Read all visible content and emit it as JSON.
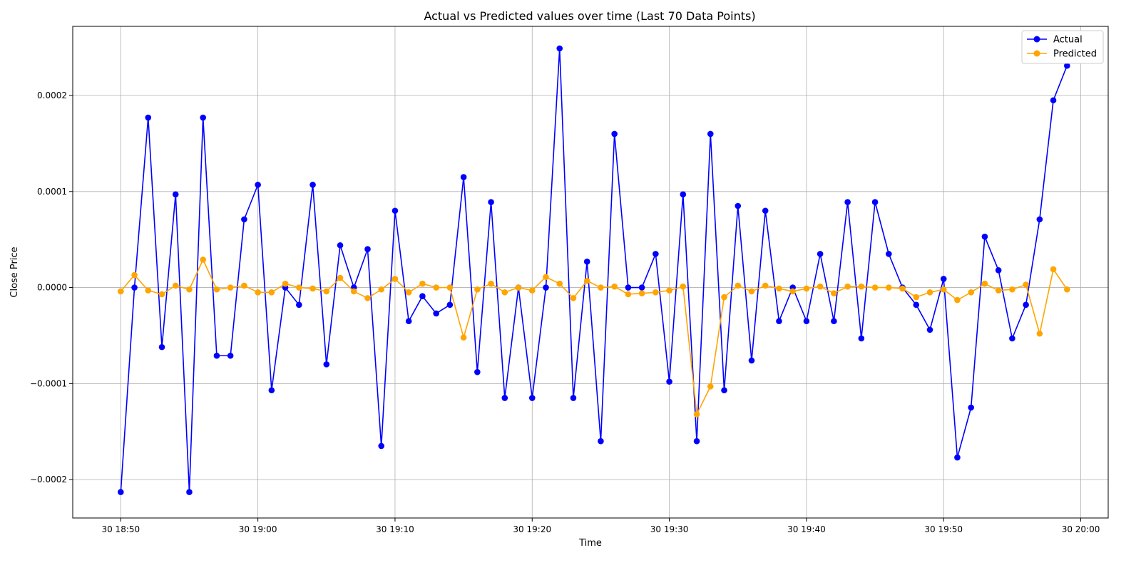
{
  "chart_data": {
    "type": "line",
    "title": "Actual vs Predicted values over time (Last 70 Data Points)",
    "xlabel": "Time",
    "ylabel": "Close Price",
    "grid": true,
    "legend_position": "top-right",
    "x_ticks": [
      "30 18:50",
      "30 19:00",
      "30 19:10",
      "30 19:20",
      "30 19:30",
      "30 19:40",
      "30 19:50",
      "30 20:00"
    ],
    "y_ticks": [
      "−0.0002",
      "−0.0001",
      "0.0000",
      "0.0001",
      "0.0002"
    ],
    "y_tick_values": [
      -0.0002,
      -0.0001,
      0.0,
      0.0001,
      0.0002
    ],
    "ylim": [
      -0.00024,
      0.000272
    ],
    "x_range": [
      "18:46:30",
      "20:02:00"
    ],
    "x_start": "18:50",
    "x_interval_minutes": 1,
    "series": [
      {
        "name": "Actual",
        "color": "#0000ff",
        "values": [
          -0.000213,
          0.0,
          0.000177,
          -6.2e-05,
          9.7e-05,
          -0.000213,
          0.000177,
          -7.1e-05,
          -7.1e-05,
          7.1e-05,
          0.000107,
          -0.000107,
          0.0,
          -1.8e-05,
          0.000107,
          -8e-05,
          4.4e-05,
          0.0,
          4e-05,
          -0.000165,
          8e-05,
          -3.5e-05,
          -9e-06,
          -2.7e-05,
          -1.8e-05,
          0.000115,
          -8.8e-05,
          8.9e-05,
          -0.000115,
          0.0,
          -0.000115,
          0.0,
          0.000249,
          -0.000115,
          2.7e-05,
          -0.00016,
          0.00016,
          0.0,
          0.0,
          3.5e-05,
          -9.8e-05,
          9.7e-05,
          -0.00016,
          0.00016,
          -0.000107,
          8.5e-05,
          -7.6e-05,
          8e-05,
          -3.5e-05,
          0.0,
          -3.5e-05,
          3.5e-05,
          -3.5e-05,
          8.9e-05,
          -5.3e-05,
          8.9e-05,
          3.5e-05,
          0.0,
          -1.8e-05,
          -4.4e-05,
          9e-06,
          -0.000177,
          -0.000125,
          5.3e-05,
          1.8e-05,
          -5.3e-05,
          -1.8e-05,
          7.1e-05,
          0.000195,
          0.000231
        ]
      },
      {
        "name": "Predicted",
        "color": "#ffa500",
        "values": [
          -4e-06,
          1.3e-05,
          -3e-06,
          -7e-06,
          2e-06,
          -2e-06,
          2.9e-05,
          -2e-06,
          0.0,
          2e-06,
          -5e-06,
          -5e-06,
          4e-06,
          0.0,
          -1e-06,
          -4e-06,
          1e-05,
          -4e-06,
          -1.1e-05,
          -2e-06,
          9e-06,
          -5e-06,
          4e-06,
          0.0,
          0.0,
          -5.2e-05,
          -2e-06,
          4e-06,
          -5e-06,
          0.0,
          -3e-06,
          1.1e-05,
          4e-06,
          -1.1e-05,
          7e-06,
          0.0,
          1e-06,
          -7e-06,
          -6e-06,
          -5e-06,
          -3e-06,
          1e-06,
          -0.000132,
          -0.000103,
          -1e-05,
          2e-06,
          -4e-06,
          2e-06,
          -1e-06,
          -4e-06,
          -1e-06,
          1e-06,
          -6e-06,
          1e-06,
          1e-06,
          0.0,
          0.0,
          -1e-06,
          -1e-05,
          -5e-06,
          -2e-06,
          -1.3e-05,
          -5e-06,
          4e-06,
          -3e-06,
          -2e-06,
          3e-06,
          -4.8e-05,
          1.9e-05,
          -2e-06
        ]
      }
    ]
  }
}
